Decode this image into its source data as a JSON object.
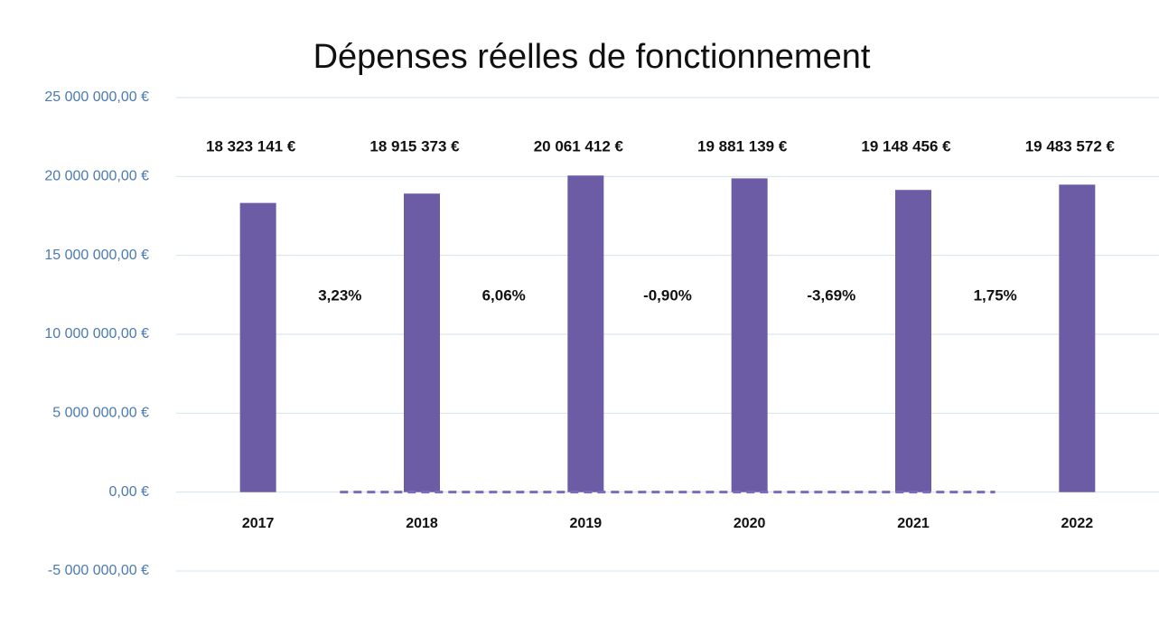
{
  "chart_data": {
    "type": "bar",
    "title": "Dépenses réelles de fonctionnement",
    "categories": [
      "2017",
      "2018",
      "2019",
      "2020",
      "2021",
      "2022"
    ],
    "values": [
      18323141,
      18915373,
      20061412,
      19881139,
      19148456,
      19483572
    ],
    "value_labels": [
      "18 323 141 €",
      "18 915 373 €",
      "20 061 412 €",
      "19 881 139 €",
      "19 148 456 €",
      "19 483 572 €"
    ],
    "color": "#6b5ca5",
    "growth": {
      "values": [
        3.23,
        6.06,
        -0.9,
        -3.69,
        1.75
      ],
      "value_labels": [
        "3,23%",
        "6,06%",
        "-0,90%",
        "-3,69%",
        "1,75%"
      ],
      "color": "#7a6cb8"
    },
    "ylim": [
      -5000000,
      25000000
    ],
    "yticks": [
      {
        "value": -5000000,
        "label": "-5 000 000,00 €"
      },
      {
        "value": 0,
        "label": "0,00 €"
      },
      {
        "value": 5000000,
        "label": "5 000 000,00 €"
      },
      {
        "value": 10000000,
        "label": "10 000 000,00 €"
      },
      {
        "value": 15000000,
        "label": "15 000 000,00 €"
      },
      {
        "value": 20000000,
        "label": "20 000 000,00 €"
      },
      {
        "value": 25000000,
        "label": "25 000 000,00 €"
      }
    ],
    "grid": true
  }
}
